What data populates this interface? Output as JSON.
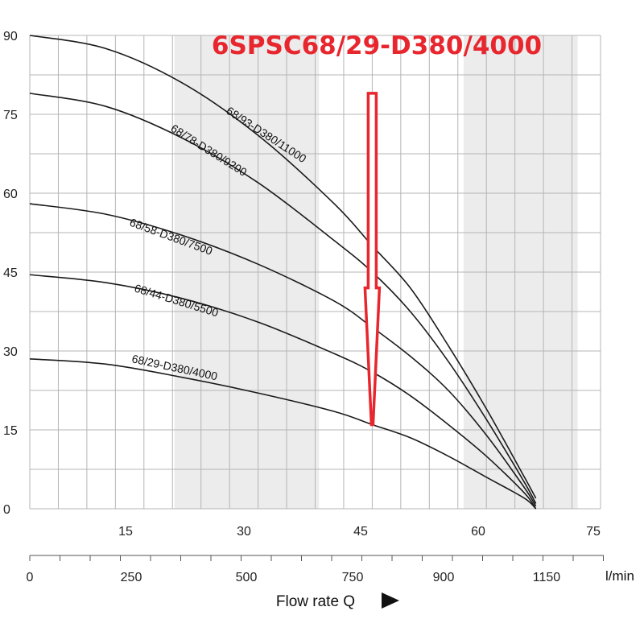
{
  "chart_data": {
    "type": "line",
    "title": "6SPSC68/29-D380/4000",
    "xlabel": "Flow rate Q",
    "ylabel": "",
    "xlim": [
      0,
      75
    ],
    "ylim": [
      0,
      90
    ],
    "y_ticks": [
      "0",
      "15",
      "30",
      "45",
      "60",
      "75",
      "90"
    ],
    "x_ticks_top": [
      "15",
      "30",
      "45",
      "60",
      "75"
    ],
    "x_ticks_bottom": [
      "0",
      "250",
      "500",
      "750",
      "900",
      "1150"
    ],
    "x_unit": "l/min",
    "shaded_bands_x": [
      [
        19,
        38
      ],
      [
        57,
        72
      ]
    ],
    "series": [
      {
        "name": "68/93-D380/11000",
        "x": [
          0,
          10,
          20,
          30,
          40,
          45,
          50,
          55,
          60,
          65,
          66.5
        ],
        "y": [
          90,
          87.5,
          81,
          71,
          58,
          50,
          42,
          31,
          19,
          6,
          2
        ]
      },
      {
        "name": "68/78-D380/9200",
        "x": [
          0,
          10,
          20,
          30,
          40,
          45,
          50,
          55,
          60,
          65,
          66.5
        ],
        "y": [
          79,
          76.5,
          70.5,
          62,
          51,
          45,
          37.5,
          28,
          17,
          5,
          1
        ]
      },
      {
        "name": "68/58-D380/7500",
        "x": [
          0,
          10,
          20,
          30,
          40,
          45,
          50,
          55,
          60,
          65,
          66.5
        ],
        "y": [
          58,
          56,
          52,
          46.5,
          39.5,
          34.5,
          29,
          22.5,
          14,
          4,
          0.5
        ]
      },
      {
        "name": "68/44-D380/5500",
        "x": [
          0,
          10,
          20,
          30,
          40,
          45,
          50,
          55,
          60,
          65,
          66.5
        ],
        "y": [
          44.5,
          43,
          40,
          35.5,
          29.5,
          26,
          21.5,
          16,
          10,
          3,
          0
        ]
      },
      {
        "name": "68/29-D380/4000",
        "x": [
          0,
          10,
          20,
          30,
          40,
          45,
          50,
          55,
          60,
          65,
          66.5
        ],
        "y": [
          28.5,
          27.5,
          25,
          22,
          18.5,
          16,
          13.5,
          10,
          6,
          2,
          0
        ]
      }
    ],
    "annotation": {
      "type": "arrow",
      "x": 45,
      "y_from": 79,
      "y_to": 16,
      "color": "#e8262e"
    },
    "colors": {
      "title": "#e8262e",
      "arrow": "#e8262e",
      "curve": "#1a1a1a",
      "grid": "#b5b5b5",
      "band": "#ececec"
    }
  }
}
